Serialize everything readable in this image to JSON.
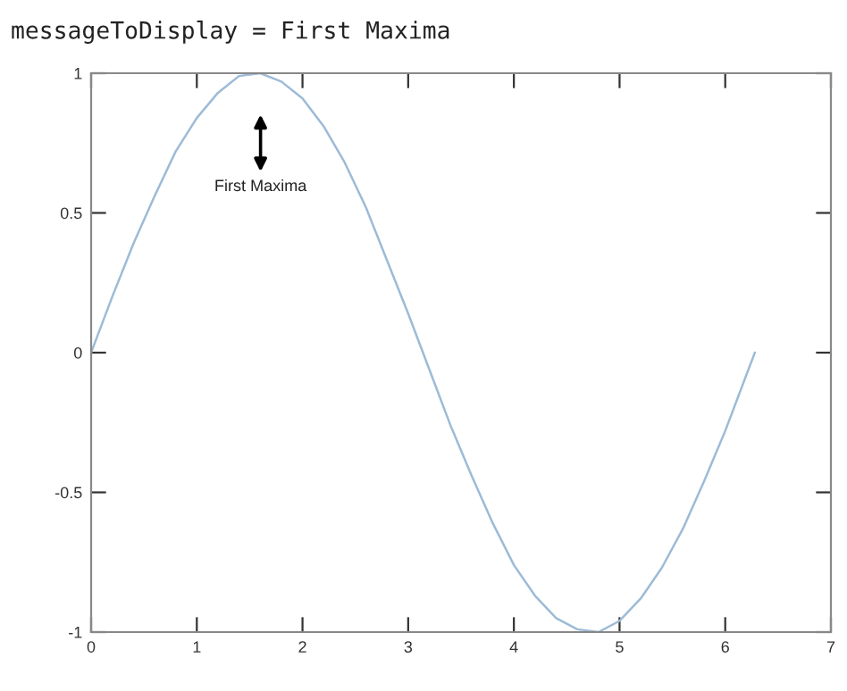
{
  "chart_data": {
    "type": "line",
    "title": "messageToDisplay = First Maxima",
    "x": [
      0,
      0.2,
      0.4,
      0.6,
      0.8,
      1.0,
      1.2,
      1.4,
      1.6,
      1.8,
      2.0,
      2.2,
      2.4,
      2.6,
      2.8,
      3.0,
      3.2,
      3.4,
      3.6,
      3.8,
      4.0,
      4.2,
      4.4,
      4.6,
      4.8,
      5.0,
      5.2,
      5.4,
      5.6,
      5.8,
      6.0,
      6.2,
      6.28
    ],
    "series": [
      {
        "color": "#9dbbd6",
        "values": [
          0,
          0.2,
          0.39,
          0.56,
          0.72,
          0.84,
          0.93,
          0.99,
          1.0,
          0.97,
          0.91,
          0.81,
          0.68,
          0.52,
          0.33,
          0.14,
          -0.06,
          -0.26,
          -0.44,
          -0.61,
          -0.76,
          -0.87,
          -0.95,
          -0.99,
          -1.0,
          -0.96,
          -0.88,
          -0.77,
          -0.63,
          -0.46,
          -0.28,
          -0.08,
          0
        ]
      }
    ],
    "annotations": [
      "First Maxima"
    ],
    "xlim": [
      0,
      7
    ],
    "ylim": [
      -1,
      1
    ],
    "xticks": [
      0,
      1,
      2,
      3,
      4,
      5,
      6,
      7
    ],
    "yticks": [
      -1,
      -0.5,
      0,
      0.5,
      1
    ],
    "grid": false,
    "legend": false,
    "marker": "none",
    "line_style": "solid"
  }
}
